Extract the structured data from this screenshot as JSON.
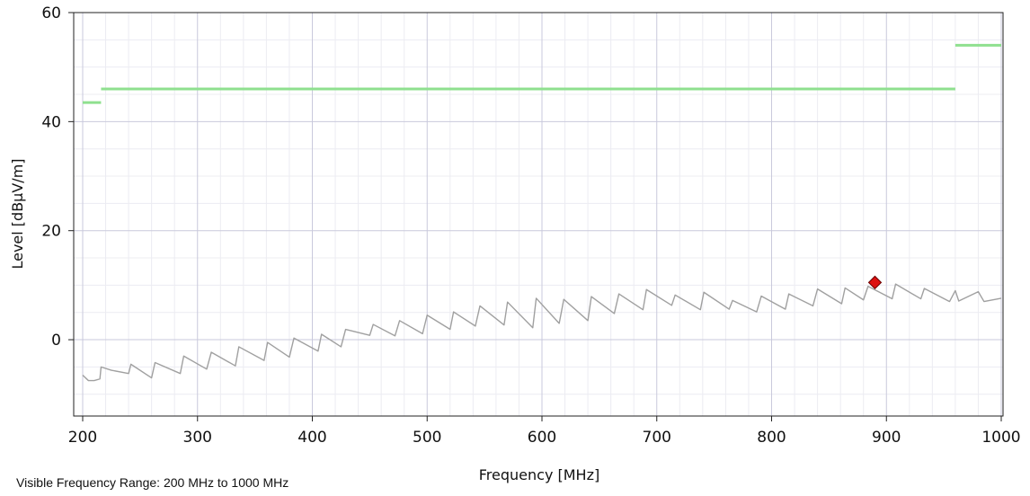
{
  "chart_data": {
    "type": "line",
    "xlabel": "Frequency [MHz]",
    "ylabel": "Level [dBµV/m]",
    "xlim": [
      200,
      1000
    ],
    "ylim": [
      -14,
      60
    ],
    "x_ticks": [
      200,
      300,
      400,
      500,
      600,
      700,
      800,
      900,
      1000
    ],
    "y_ticks": [
      0,
      20,
      40,
      60
    ],
    "grid": true,
    "series": [
      {
        "role": "limit",
        "color": "#8fe08f",
        "segments": [
          {
            "x": [
              200,
              216
            ],
            "y": [
              43.5,
              43.5
            ]
          },
          {
            "x": [
              216,
              960
            ],
            "y": [
              46,
              46
            ]
          },
          {
            "x": [
              960,
              1000
            ],
            "y": [
              54,
              54
            ]
          }
        ]
      },
      {
        "role": "measurement",
        "color": "#a0a0a0",
        "x": [
          200,
          205,
          210,
          215,
          216,
          225,
          240,
          242,
          260,
          263,
          285,
          288,
          308,
          312,
          333,
          336,
          358,
          361,
          380,
          384,
          405,
          408,
          425,
          429,
          450,
          453,
          472,
          476,
          496,
          500,
          520,
          523,
          542,
          546,
          567,
          570,
          592,
          595,
          615,
          619,
          640,
          643,
          663,
          667,
          688,
          691,
          713,
          716,
          738,
          741,
          763,
          766,
          787,
          791,
          812,
          815,
          836,
          840,
          861,
          864,
          880,
          884,
          905,
          908,
          930,
          933,
          955,
          960,
          963,
          980,
          985,
          1000
        ],
        "y": [
          -6.5,
          -7.5,
          -7.5,
          -7.2,
          -5,
          -5.6,
          -6.2,
          -4.5,
          -7,
          -4.2,
          -6.2,
          -3,
          -5.4,
          -2.3,
          -4.8,
          -1.3,
          -3.8,
          -0.5,
          -3.2,
          0.3,
          -2.1,
          1,
          -1.3,
          1.9,
          0.8,
          2.8,
          0.7,
          3.5,
          1.1,
          4.5,
          1.9,
          5.1,
          2.5,
          6.2,
          2.7,
          6.9,
          2.2,
          7.6,
          3,
          7.4,
          3.5,
          7.9,
          4.8,
          8.4,
          5.5,
          9.2,
          6.3,
          8.2,
          5.5,
          8.7,
          5.6,
          7.2,
          5.1,
          8,
          5.6,
          8.4,
          6.2,
          9.3,
          6.6,
          9.5,
          7.3,
          9.8,
          7.5,
          10.2,
          7.5,
          9.4,
          7,
          9,
          7.1,
          8.8,
          7,
          7.6
        ]
      }
    ],
    "markers": [
      {
        "x": 890,
        "y": 10.5,
        "shape": "diamond",
        "color": "#dd1111"
      }
    ]
  },
  "footer": {
    "visible_range": "Visible Frequency Range: 200 MHz to 1000 MHz"
  }
}
